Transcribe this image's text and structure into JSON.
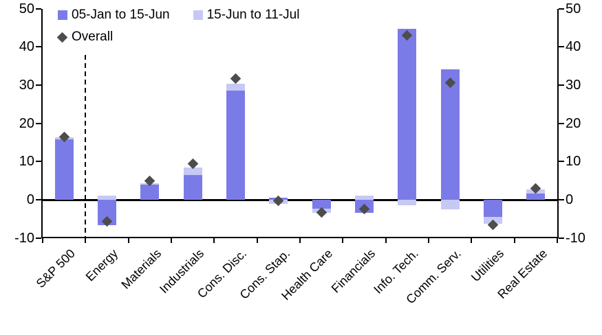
{
  "chart_data": {
    "type": "bar",
    "stacked": true,
    "title": "",
    "xlabel": "",
    "ylabel": "",
    "ylim": [
      -10,
      50
    ],
    "yticks": [
      50,
      40,
      30,
      20,
      10,
      0,
      -10
    ],
    "grid": false,
    "legend_position": "top-left-inside",
    "axes": {
      "left": true,
      "right": true,
      "zero_line": true
    },
    "separator": {
      "style": "dashed-vertical-line",
      "after_category": "S&P 500"
    },
    "categories": [
      "S&P 500",
      "Energy",
      "Materials",
      "Industrials",
      "Cons. Disc.",
      "Cons. Stap.",
      "Health Care",
      "Financials",
      "Info. Tech.",
      "Comm. Serv.",
      "Utilities",
      "Real Estate"
    ],
    "series": [
      {
        "name": "05-Jan to 15-Jun",
        "color": "#7b7be8",
        "values": [
          15.8,
          -6.7,
          4.0,
          6.5,
          28.6,
          0.6,
          -2.4,
          -3.4,
          44.7,
          34.1,
          -4.4,
          1.7
        ]
      },
      {
        "name": "15-Jun to 11-Jul",
        "color": "#c6c9f4",
        "values": [
          0.5,
          1.1,
          0.3,
          2.0,
          1.7,
          -1.0,
          -1.0,
          1.1,
          -1.5,
          -2.5,
          -1.9,
          1.0
        ]
      }
    ],
    "overall_series": {
      "name": "Overall",
      "marker": "diamond",
      "color": "#4d4d4d",
      "values": [
        16.4,
        -5.7,
        4.9,
        9.4,
        31.7,
        -0.2,
        -3.4,
        -2.4,
        43.0,
        30.6,
        -6.6,
        3.0
      ]
    }
  }
}
